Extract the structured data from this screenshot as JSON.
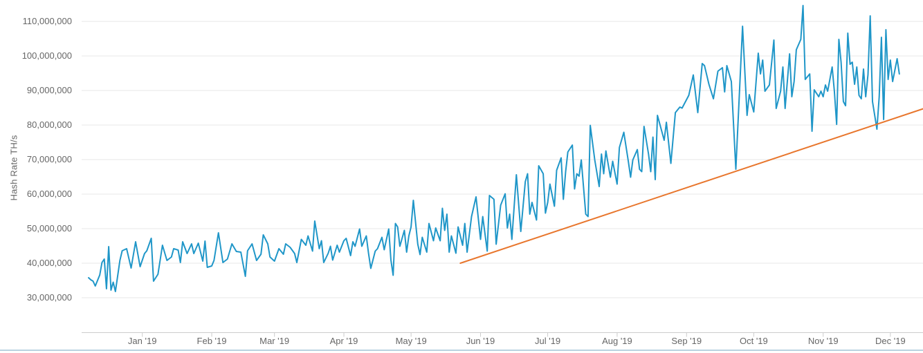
{
  "chart": {
    "y_axis": {
      "title": "Hash Rate TH/s",
      "tick_labels": [
        "30,000,000",
        "40,000,000",
        "50,000,000",
        "60,000,000",
        "70,000,000",
        "80,000,000",
        "90,000,000",
        "100,000,000",
        "110,000,000"
      ],
      "tick_values_millions": [
        30,
        40,
        50,
        60,
        70,
        80,
        90,
        100,
        110
      ]
    },
    "x_axis": {
      "tick_labels": [
        "Jan '19",
        "Feb '19",
        "Mar '19",
        "Apr '19",
        "May '19",
        "Jun '19",
        "Jul '19",
        "Aug '19",
        "Sep '19",
        "Oct '19",
        "Nov '19",
        "Dec '19"
      ],
      "tick_day_offsets": [
        24,
        55,
        83,
        114,
        144,
        175,
        205,
        236,
        267,
        297,
        328,
        358
      ]
    },
    "colors": {
      "series_blue": "#1f96c8",
      "trendline_orange": "#e8762d",
      "gridline": "#e7e7e7",
      "axis_line": "#cccccc",
      "label_text": "#666666",
      "bottom_divider": "#b9d2e0"
    }
  },
  "chart_data": {
    "type": "line",
    "title": "",
    "xlabel": "",
    "ylabel": "Hash Rate TH/s",
    "value_unit": "TH/s",
    "value_scale": 1000000,
    "x_unit": "day index across the plotted year (month ticks Jan '19 through Dec '19)",
    "ylim_millions": [
      20,
      115
    ],
    "grid": true,
    "legend": "none",
    "series": [
      {
        "name": "Hash Rate",
        "color": "#1f96c8",
        "width": 2,
        "points_day_value_millions": [
          [
            0,
            35.8
          ],
          [
            1,
            35.2
          ],
          [
            2,
            34.8
          ],
          [
            3,
            33.4
          ],
          [
            5,
            36.6
          ],
          [
            6,
            40.2
          ],
          [
            7,
            41.2
          ],
          [
            8,
            32.6
          ],
          [
            9,
            44.8
          ],
          [
            10,
            32.2
          ],
          [
            11,
            34.5
          ],
          [
            12,
            31.8
          ],
          [
            14,
            40.8
          ],
          [
            15,
            43.6
          ],
          [
            17,
            44.2
          ],
          [
            19,
            38.6
          ],
          [
            21,
            46.2
          ],
          [
            23,
            39
          ],
          [
            25,
            42.8
          ],
          [
            26,
            43.6
          ],
          [
            28,
            47.2
          ],
          [
            29,
            34.8
          ],
          [
            31,
            36.8
          ],
          [
            33,
            45.2
          ],
          [
            35,
            40.8
          ],
          [
            37,
            41.8
          ],
          [
            38,
            44.2
          ],
          [
            40,
            43.8
          ],
          [
            41,
            40.2
          ],
          [
            42,
            46.2
          ],
          [
            44,
            42.8
          ],
          [
            46,
            45.6
          ],
          [
            47,
            42.8
          ],
          [
            49,
            45.8
          ],
          [
            51,
            40.6
          ],
          [
            52,
            46.4
          ],
          [
            53,
            38.8
          ],
          [
            55,
            39.2
          ],
          [
            56,
            40.8
          ],
          [
            58,
            48.8
          ],
          [
            60,
            40.2
          ],
          [
            62,
            41.2
          ],
          [
            64,
            45.6
          ],
          [
            66,
            43.4
          ],
          [
            68,
            43.2
          ],
          [
            70,
            36.2
          ],
          [
            71,
            43.6
          ],
          [
            73,
            45.6
          ],
          [
            75,
            40.8
          ],
          [
            77,
            42.6
          ],
          [
            78,
            48.2
          ],
          [
            80,
            45.6
          ],
          [
            81,
            41.8
          ],
          [
            83,
            40.6
          ],
          [
            85,
            44.2
          ],
          [
            87,
            42.6
          ],
          [
            88,
            45.6
          ],
          [
            90,
            44.6
          ],
          [
            92,
            42.8
          ],
          [
            93,
            40.2
          ],
          [
            95,
            46.9
          ],
          [
            97,
            45.2
          ],
          [
            98,
            47.9
          ],
          [
            100,
            43.5
          ],
          [
            101,
            52.2
          ],
          [
            103,
            44.2
          ],
          [
            104,
            46.5
          ],
          [
            105,
            40.2
          ],
          [
            107,
            42.9
          ],
          [
            108,
            44.9
          ],
          [
            109,
            40.9
          ],
          [
            111,
            45.2
          ],
          [
            112,
            43.2
          ],
          [
            114,
            46.5
          ],
          [
            115,
            47.2
          ],
          [
            117,
            42.2
          ],
          [
            118,
            46.2
          ],
          [
            119,
            44.9
          ],
          [
            121,
            49.9
          ],
          [
            122,
            44.9
          ],
          [
            124,
            47.9
          ],
          [
            125,
            42.9
          ],
          [
            126,
            38.5
          ],
          [
            128,
            43.5
          ],
          [
            129,
            44.2
          ],
          [
            131,
            47.5
          ],
          [
            132,
            43.9
          ],
          [
            134,
            49.9
          ],
          [
            135,
            40.9
          ],
          [
            136,
            36.5
          ],
          [
            137,
            51.5
          ],
          [
            138,
            50.5
          ],
          [
            139,
            44.9
          ],
          [
            141,
            49.5
          ],
          [
            142,
            43.2
          ],
          [
            143,
            47.9
          ],
          [
            144,
            50.5
          ],
          [
            145,
            58.2
          ],
          [
            147,
            45.5
          ],
          [
            148,
            42.5
          ],
          [
            149,
            47.5
          ],
          [
            151,
            43.2
          ],
          [
            152,
            51.5
          ],
          [
            154,
            46.5
          ],
          [
            155,
            50.2
          ],
          [
            157,
            46.5
          ],
          [
            158,
            55.9
          ],
          [
            159,
            49.5
          ],
          [
            160,
            54.2
          ],
          [
            161,
            43.2
          ],
          [
            162,
            47.9
          ],
          [
            164,
            42.9
          ],
          [
            165,
            50.5
          ],
          [
            167,
            45.2
          ],
          [
            168,
            51.5
          ],
          [
            169,
            43.2
          ],
          [
            171,
            53.5
          ],
          [
            173,
            59.2
          ],
          [
            175,
            46.9
          ],
          [
            176,
            53.5
          ],
          [
            178,
            43.5
          ],
          [
            179,
            59.6
          ],
          [
            181,
            58.5
          ],
          [
            182,
            45.5
          ],
          [
            184,
            56.8
          ],
          [
            186,
            60.1
          ],
          [
            187,
            50.2
          ],
          [
            188,
            54.2
          ],
          [
            189,
            46.9
          ],
          [
            191,
            65.6
          ],
          [
            193,
            49.2
          ],
          [
            195,
            63.6
          ],
          [
            196,
            65.9
          ],
          [
            197,
            54.2
          ],
          [
            198,
            57.6
          ],
          [
            200,
            52.5
          ],
          [
            201,
            68.2
          ],
          [
            203,
            65.9
          ],
          [
            204,
            54.5
          ],
          [
            205,
            57.6
          ],
          [
            206,
            62.9
          ],
          [
            208,
            56.5
          ],
          [
            209,
            66.9
          ],
          [
            211,
            70.5
          ],
          [
            212,
            58.5
          ],
          [
            213,
            66.5
          ],
          [
            214,
            72.2
          ],
          [
            216,
            74.2
          ],
          [
            217,
            61.5
          ],
          [
            218,
            65.9
          ],
          [
            219,
            65.2
          ],
          [
            220,
            69.9
          ],
          [
            222,
            54.2
          ],
          [
            223,
            53.5
          ],
          [
            224,
            79.9
          ],
          [
            226,
            69.9
          ],
          [
            228,
            62.2
          ],
          [
            229,
            71.6
          ],
          [
            230,
            65.9
          ],
          [
            231,
            72.5
          ],
          [
            233,
            64.9
          ],
          [
            234,
            69.5
          ],
          [
            236,
            62.9
          ],
          [
            237,
            73.5
          ],
          [
            239,
            77.9
          ],
          [
            241,
            69.5
          ],
          [
            242,
            64.9
          ],
          [
            243,
            69.9
          ],
          [
            245,
            72.9
          ],
          [
            246,
            67.2
          ],
          [
            247,
            66.5
          ],
          [
            248,
            79.6
          ],
          [
            250,
            71.6
          ],
          [
            251,
            66.5
          ],
          [
            252,
            76.5
          ],
          [
            253,
            64.2
          ],
          [
            254,
            82.8
          ],
          [
            256,
            78
          ],
          [
            257,
            75.6
          ],
          [
            258,
            80.8
          ],
          [
            260,
            68.9
          ],
          [
            262,
            83.6
          ],
          [
            264,
            85.2
          ],
          [
            265,
            84.9
          ],
          [
            268,
            88.6
          ],
          [
            270,
            94.5
          ],
          [
            272,
            83.6
          ],
          [
            274,
            97.8
          ],
          [
            275,
            97.2
          ],
          [
            277,
            91.8
          ],
          [
            279,
            87.6
          ],
          [
            281,
            95.6
          ],
          [
            283,
            96.6
          ],
          [
            284,
            89.6
          ],
          [
            285,
            97.2
          ],
          [
            287,
            92.6
          ],
          [
            289,
            67.2
          ],
          [
            292,
            108.6
          ],
          [
            294,
            82.8
          ],
          [
            295,
            88.8
          ],
          [
            297,
            83.8
          ],
          [
            299,
            100.8
          ],
          [
            300,
            94.8
          ],
          [
            301,
            98.8
          ],
          [
            302,
            89.8
          ],
          [
            304,
            91.6
          ],
          [
            306,
            104.6
          ],
          [
            307,
            84.8
          ],
          [
            309,
            89.8
          ],
          [
            310,
            96.8
          ],
          [
            311,
            84.8
          ],
          [
            313,
            100.6
          ],
          [
            314,
            88.2
          ],
          [
            315,
            92.6
          ],
          [
            316,
            101.8
          ],
          [
            318,
            104.8
          ],
          [
            319,
            114.6
          ],
          [
            320,
            93.2
          ],
          [
            322,
            94.8
          ],
          [
            323,
            78.2
          ],
          [
            324,
            90.2
          ],
          [
            326,
            88.2
          ],
          [
            327,
            89.8
          ],
          [
            328,
            88.2
          ],
          [
            329,
            91.6
          ],
          [
            330,
            89.8
          ],
          [
            331,
            93.2
          ],
          [
            332,
            96.8
          ],
          [
            333,
            89.8
          ],
          [
            334,
            80.2
          ],
          [
            335,
            104.8
          ],
          [
            336,
            98.2
          ],
          [
            337,
            86.8
          ],
          [
            338,
            85.6
          ],
          [
            339,
            106.6
          ],
          [
            340,
            97.6
          ],
          [
            341,
            98.2
          ],
          [
            342,
            91.8
          ],
          [
            343,
            96.8
          ],
          [
            344,
            88.6
          ],
          [
            345,
            87.6
          ],
          [
            346,
            96.2
          ],
          [
            347,
            88.2
          ],
          [
            348,
            94.6
          ],
          [
            349,
            111.6
          ],
          [
            350,
            86.8
          ],
          [
            351,
            82.8
          ],
          [
            352,
            78.8
          ],
          [
            353,
            88.2
          ],
          [
            354,
            105.4
          ],
          [
            355,
            81.6
          ],
          [
            356,
            107.6
          ],
          [
            357,
            93.2
          ],
          [
            358,
            98.8
          ],
          [
            359,
            92.6
          ],
          [
            361,
            99.2
          ],
          [
            362,
            94.8
          ]
        ]
      },
      {
        "name": "Trendline",
        "color": "#e8762d",
        "width": 2,
        "points_day_value_millions": [
          [
            166,
            40
          ],
          [
            372.6,
            84.7
          ]
        ]
      }
    ]
  }
}
